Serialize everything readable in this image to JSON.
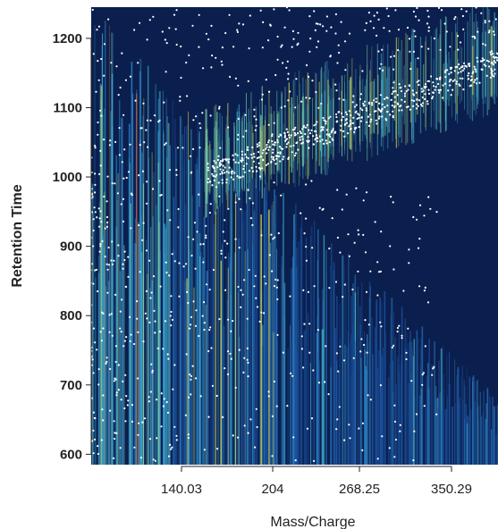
{
  "chart_data": {
    "type": "heatmap",
    "title": "",
    "xlabel": "Mass/Charge",
    "ylabel": "Retention Time",
    "x_ticks": [
      "140.03",
      "204",
      "268.25",
      "350.29"
    ],
    "y_ticks": [
      600,
      700,
      800,
      900,
      1000,
      1100,
      1200
    ],
    "ylim": [
      585,
      1245
    ],
    "background_color": "#0b1f4f",
    "colormap": [
      "#0b1f4f",
      "#1b4f9a",
      "#2f86c7",
      "#44b3c9",
      "#7fd0a0",
      "#e0e04a",
      "#e06030",
      "#c02020"
    ],
    "point_color": "#ffffff",
    "grid": false,
    "legend": "none"
  }
}
